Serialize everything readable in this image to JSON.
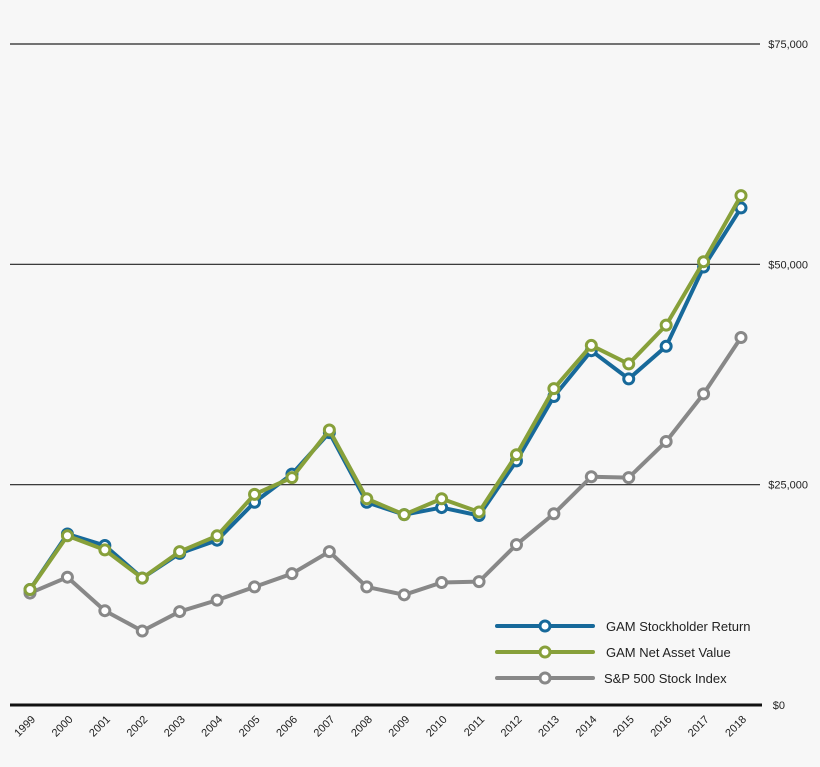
{
  "chart_data": {
    "type": "line",
    "x": [
      "1999",
      "2000",
      "2001",
      "2002",
      "2003",
      "2004",
      "2005",
      "2006",
      "2007",
      "2008",
      "2009",
      "2010",
      "2011",
      "2012",
      "2013",
      "2014",
      "2015",
      "2016",
      "2017",
      "2018"
    ],
    "ylim": [
      0,
      75000
    ],
    "yticks": [
      0,
      25000,
      50000,
      75000
    ],
    "ytick_labels": [
      "$0",
      "$25,000",
      "$50,000",
      "$75,000"
    ],
    "grid": true,
    "legend_position": "bottom-right",
    "series": [
      {
        "name": "GAM Stockholder Return",
        "color": "#17699a",
        "values": [
          13100,
          19400,
          18100,
          14400,
          17200,
          18700,
          23000,
          26200,
          30900,
          23000,
          21600,
          22400,
          21500,
          27700,
          35000,
          40200,
          37000,
          40700,
          49700,
          56400
        ]
      },
      {
        "name": "GAM Net Asset Value",
        "color": "#87a03a",
        "values": [
          13100,
          19200,
          17600,
          14400,
          17400,
          19200,
          23900,
          25800,
          31200,
          23400,
          21600,
          23400,
          21900,
          28400,
          35900,
          40800,
          38700,
          43100,
          50300,
          57800
        ]
      },
      {
        "name": "S&P 500 Stock Index",
        "color": "#888888",
        "values": [
          12700,
          14500,
          10700,
          8400,
          10600,
          11900,
          13400,
          14900,
          17400,
          13400,
          12500,
          13900,
          14000,
          18200,
          21700,
          25900,
          25800,
          29900,
          35300,
          41700
        ]
      }
    ]
  }
}
